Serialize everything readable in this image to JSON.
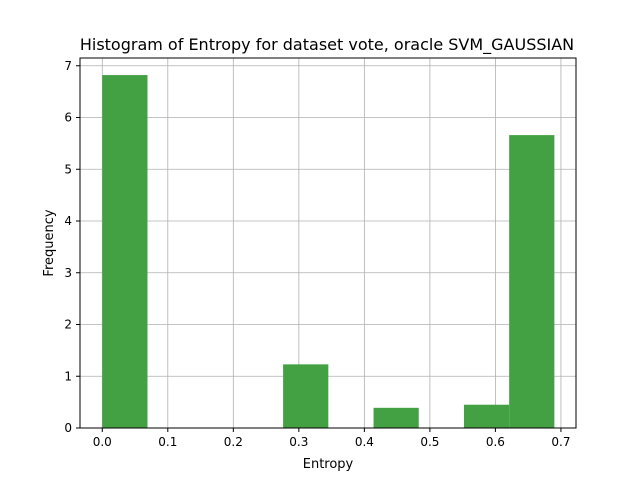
{
  "chart_data": {
    "type": "bar",
    "title": "Histogram of Entropy for dataset vote, oracle SVM_GAUSSIAN",
    "xlabel": "Entropy",
    "ylabel": "Frequency",
    "xlim": [
      -0.034,
      0.723
    ],
    "ylim": [
      0,
      7.15
    ],
    "grid": true,
    "bar_color": "#43a043",
    "xticks": [
      0.0,
      0.1,
      0.2,
      0.3,
      0.4,
      0.5,
      0.6,
      0.7
    ],
    "xtick_labels": [
      "0.0",
      "0.1",
      "0.2",
      "0.3",
      "0.4",
      "0.5",
      "0.6",
      "0.7"
    ],
    "yticks": [
      0,
      1,
      2,
      3,
      4,
      5,
      6,
      7
    ],
    "ytick_labels": [
      "0",
      "1",
      "2",
      "3",
      "4",
      "5",
      "6",
      "7"
    ],
    "bins": [
      {
        "x0": 0.0,
        "x1": 0.069,
        "value": 6.82
      },
      {
        "x0": 0.069,
        "x1": 0.138,
        "value": 0
      },
      {
        "x0": 0.138,
        "x1": 0.207,
        "value": 0
      },
      {
        "x0": 0.207,
        "x1": 0.276,
        "value": 0
      },
      {
        "x0": 0.276,
        "x1": 0.345,
        "value": 1.23
      },
      {
        "x0": 0.345,
        "x1": 0.414,
        "value": 0
      },
      {
        "x0": 0.414,
        "x1": 0.483,
        "value": 0.39
      },
      {
        "x0": 0.483,
        "x1": 0.552,
        "value": 0
      },
      {
        "x0": 0.552,
        "x1": 0.621,
        "value": 0.45
      },
      {
        "x0": 0.621,
        "x1": 0.69,
        "value": 5.66
      }
    ]
  }
}
